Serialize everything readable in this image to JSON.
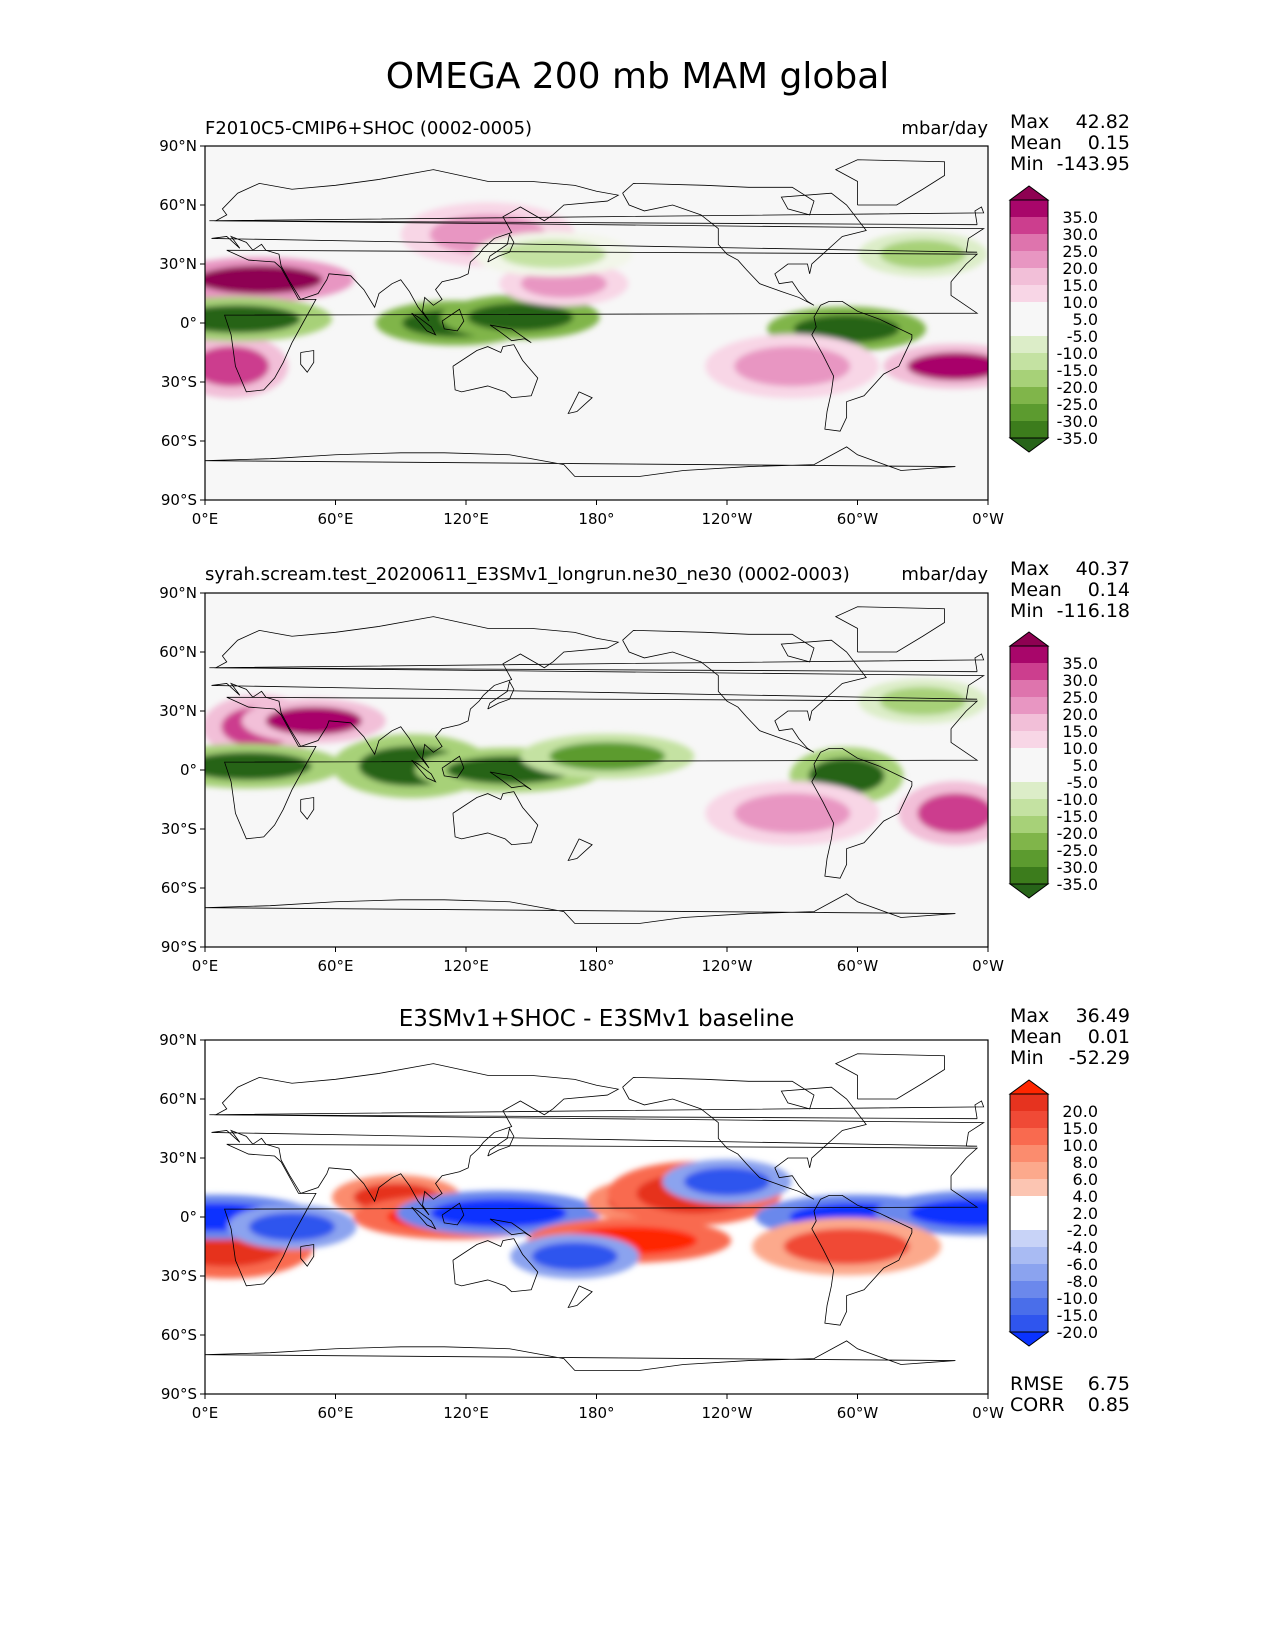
{
  "figure": {
    "title": "OMEGA 200 mb MAM global"
  },
  "colors": {
    "pos_seq": [
      "#fdeef5",
      "#f8d6e6",
      "#f2bfd8",
      "#e896c2",
      "#de74ad",
      "#cc3e8e",
      "#a8066a",
      "#8e0152"
    ],
    "neg_seq": [
      "#f2f6e9",
      "#dcedc8",
      "#c4e2a2",
      "#a7d178",
      "#80b54a",
      "#5c9b2f",
      "#3c7c1c",
      "#276419"
    ],
    "diff_pos": [
      "#fee5d9",
      "#fcc5b2",
      "#fca98c",
      "#fb8c6e",
      "#f96a4f",
      "#f04a36",
      "#e6331f",
      "#ff2600"
    ],
    "diff_neg": [
      "#e3e9fb",
      "#c8d3f7",
      "#a9bbf3",
      "#8ba3ef",
      "#6b88ec",
      "#4a6eea",
      "#2f55ee",
      "#0a33ff"
    ],
    "background": "#f7f7f7",
    "coast": "#000000"
  },
  "x_ticks": [
    "0°E",
    "60°E",
    "120°E",
    "180°",
    "120°W",
    "60°W",
    "0°W"
  ],
  "y_ticks": [
    "90°N",
    "60°N",
    "30°N",
    "0°",
    "30°S",
    "60°S",
    "90°S"
  ],
  "panels": {
    "p1": {
      "title_left": "F2010C5-CMIP6+SHOC (0002-0005)",
      "units": "mbar/day",
      "stats": {
        "max_label": "Max",
        "max": "42.82",
        "mean_label": "Mean",
        "mean": "0.15",
        "min_label": "Min",
        "min": "-143.95"
      },
      "colorbar_levels": [
        "35.0",
        "30.0",
        "25.0",
        "20.0",
        "15.0",
        "10.0",
        "5.0",
        "-5.0",
        "-10.0",
        "-15.0",
        "-20.0",
        "-25.0",
        "-30.0",
        "-35.0"
      ]
    },
    "p2": {
      "title_left": "syrah.scream.test_20200611_E3SMv1_longrun.ne30_ne30 (0002-0003)",
      "units": "mbar/day",
      "stats": {
        "max_label": "Max",
        "max": "40.37",
        "mean_label": "Mean",
        "mean": "0.14",
        "min_label": "Min",
        "min": "-116.18"
      },
      "colorbar_levels": [
        "35.0",
        "30.0",
        "25.0",
        "20.0",
        "15.0",
        "10.0",
        "5.0",
        "-5.0",
        "-10.0",
        "-15.0",
        "-20.0",
        "-25.0",
        "-30.0",
        "-35.0"
      ]
    },
    "p3": {
      "title_center": "E3SMv1+SHOC - E3SMv1 baseline",
      "stats": {
        "max_label": "Max",
        "max": "36.49",
        "mean_label": "Mean",
        "mean": "0.01",
        "min_label": "Min",
        "min": "-52.29"
      },
      "colorbar_levels": [
        "20.0",
        "15.0",
        "10.0",
        "8.0",
        "6.0",
        "4.0",
        "2.0",
        "-2.0",
        "-4.0",
        "-6.0",
        "-8.0",
        "-10.0",
        "-15.0",
        "-20.0"
      ],
      "rmse_label": "RMSE",
      "rmse": "6.75",
      "corr_label": "CORR",
      "corr": "0.85"
    }
  },
  "chart_data": [
    {
      "type": "heatmap",
      "title": "F2010C5-CMIP6+SHOC (0002-0005)",
      "units": "mbar/day",
      "x_range": [
        0,
        360
      ],
      "y_range": [
        -90,
        90
      ],
      "levels": [
        -35,
        -30,
        -25,
        -20,
        -15,
        -10,
        -5,
        5,
        10,
        15,
        20,
        25,
        30,
        35
      ],
      "max": 42.82,
      "mean": 0.15,
      "min": -143.95,
      "features": [
        {
          "lon": 25,
          "lat": 22,
          "value": 40
        },
        {
          "lon": 12,
          "lat": -22,
          "value": 28
        },
        {
          "lon": 15,
          "lat": 2,
          "value": -40
        },
        {
          "lon": 115,
          "lat": 0,
          "value": -45
        },
        {
          "lon": 145,
          "lat": 3,
          "value": -45
        },
        {
          "lon": 295,
          "lat": -3,
          "value": -45
        },
        {
          "lon": 130,
          "lat": 45,
          "value": 18
        },
        {
          "lon": 165,
          "lat": 20,
          "value": 15
        },
        {
          "lon": 160,
          "lat": 35,
          "value": -10
        },
        {
          "lon": 330,
          "lat": 35,
          "value": -15
        },
        {
          "lon": 345,
          "lat": -22,
          "value": 30
        },
        {
          "lon": 270,
          "lat": -22,
          "value": 18
        }
      ]
    },
    {
      "type": "heatmap",
      "title": "syrah.scream.test_20200611_E3SMv1_longrun.ne30_ne30 (0002-0003)",
      "units": "mbar/day",
      "x_range": [
        0,
        360
      ],
      "y_range": [
        -90,
        90
      ],
      "levels": [
        -35,
        -30,
        -25,
        -20,
        -15,
        -10,
        -5,
        5,
        10,
        15,
        20,
        25,
        30,
        35
      ],
      "max": 40.37,
      "mean": 0.14,
      "min": -116.18,
      "features": [
        {
          "lon": 25,
          "lat": 22,
          "value": 28
        },
        {
          "lon": 50,
          "lat": 25,
          "value": 30
        },
        {
          "lon": 20,
          "lat": 2,
          "value": -40
        },
        {
          "lon": 95,
          "lat": 2,
          "value": -38
        },
        {
          "lon": 140,
          "lat": 0,
          "value": -40
        },
        {
          "lon": 185,
          "lat": 7,
          "value": -25
        },
        {
          "lon": 295,
          "lat": -3,
          "value": -42
        },
        {
          "lon": 345,
          "lat": -22,
          "value": 28
        },
        {
          "lon": 330,
          "lat": 35,
          "value": -15
        },
        {
          "lon": 270,
          "lat": -22,
          "value": 18
        }
      ]
    },
    {
      "type": "heatmap",
      "title": "E3SMv1+SHOC - E3SMv1 baseline",
      "x_range": [
        0,
        360
      ],
      "y_range": [
        -90,
        90
      ],
      "levels": [
        -20,
        -15,
        -10,
        -8,
        -6,
        -4,
        -2,
        2,
        4,
        6,
        8,
        10,
        15,
        20
      ],
      "max": 36.49,
      "mean": 0.01,
      "min": -52.29,
      "rmse": 6.75,
      "corr": 0.85,
      "features": [
        {
          "lon": 10,
          "lat": -15,
          "value": 18
        },
        {
          "lon": 5,
          "lat": 0,
          "value": -20
        },
        {
          "lon": 40,
          "lat": -5,
          "value": -15
        },
        {
          "lon": 88,
          "lat": 10,
          "value": 15
        },
        {
          "lon": 115,
          "lat": 0,
          "value": 20
        },
        {
          "lon": 135,
          "lat": 2,
          "value": -20
        },
        {
          "lon": 205,
          "lat": 8,
          "value": 15
        },
        {
          "lon": 225,
          "lat": 12,
          "value": 18
        },
        {
          "lon": 195,
          "lat": -12,
          "value": 20
        },
        {
          "lon": 170,
          "lat": -20,
          "value": -15
        },
        {
          "lon": 240,
          "lat": 18,
          "value": -15
        },
        {
          "lon": 300,
          "lat": 0,
          "value": -20
        },
        {
          "lon": 355,
          "lat": 2,
          "value": -20
        },
        {
          "lon": 295,
          "lat": -15,
          "value": 12
        }
      ]
    }
  ]
}
